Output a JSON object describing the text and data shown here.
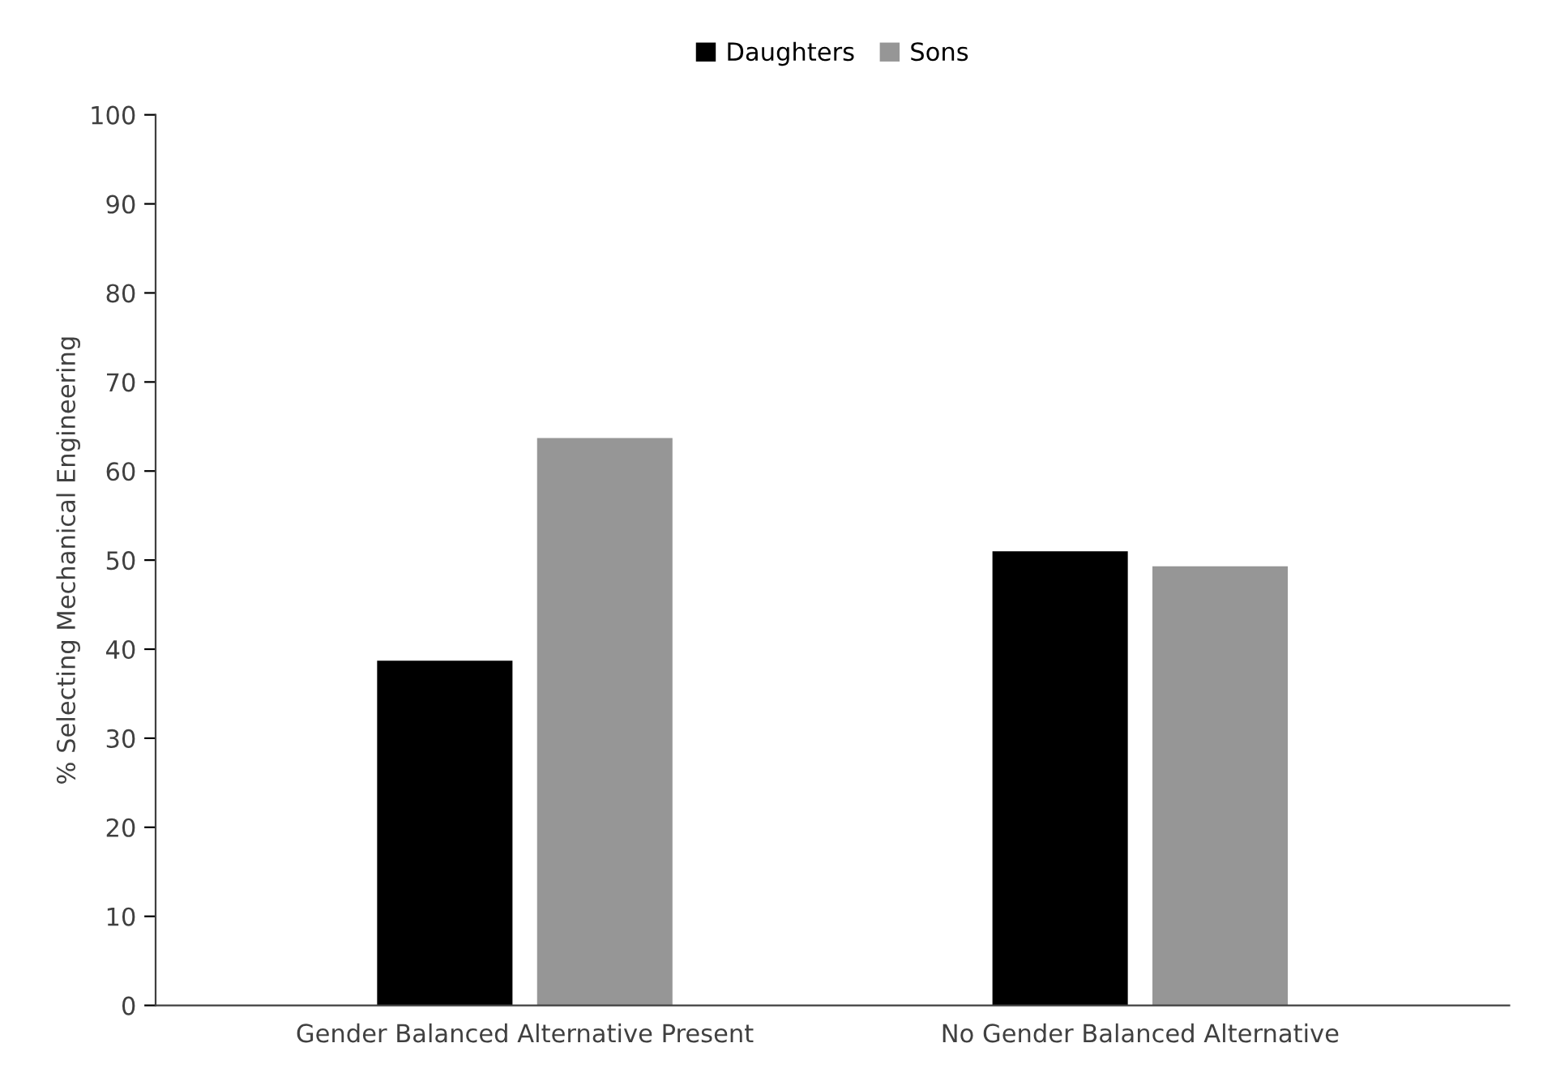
{
  "chart_data": {
    "type": "bar",
    "ylabel": "% Selecting Mechanical Engineering",
    "categories": [
      "Gender Balanced Alternative Present",
      "No Gender Balanced Alternative"
    ],
    "series": [
      {
        "name": "Daughters",
        "color": "#000000",
        "values": [
          38.7,
          51.0
        ]
      },
      {
        "name": "Sons",
        "color": "#969696",
        "values": [
          63.7,
          49.3
        ]
      }
    ],
    "ylim": [
      0,
      100
    ],
    "yticks": [
      0,
      10,
      20,
      30,
      40,
      50,
      60,
      70,
      80,
      90,
      100
    ],
    "grid": false,
    "legend": "top"
  }
}
